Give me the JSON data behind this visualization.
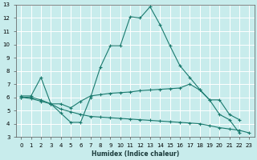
{
  "xlabel": "Humidex (Indice chaleur)",
  "xlim": [
    -0.5,
    23.5
  ],
  "ylim": [
    3,
    13
  ],
  "xticks": [
    0,
    1,
    2,
    3,
    4,
    5,
    6,
    7,
    8,
    9,
    10,
    11,
    12,
    13,
    14,
    15,
    16,
    17,
    18,
    19,
    20,
    21,
    22,
    23
  ],
  "yticks": [
    3,
    4,
    5,
    6,
    7,
    8,
    9,
    10,
    11,
    12,
    13
  ],
  "bg_color": "#c8ecec",
  "grid_color": "#ffffff",
  "line_color": "#1a7a6e",
  "lines": [
    {
      "x": [
        0,
        1,
        2,
        3,
        4,
        5,
        6,
        7,
        8,
        9,
        10,
        11,
        12,
        13,
        14,
        15,
        16,
        17,
        18,
        19,
        20,
        21,
        22
      ],
      "y": [
        6.1,
        6.1,
        7.5,
        5.5,
        4.8,
        4.1,
        4.1,
        6.0,
        8.3,
        9.9,
        9.9,
        12.1,
        12.0,
        12.85,
        11.5,
        9.9,
        8.4,
        7.5,
        6.6,
        5.8,
        4.7,
        4.3,
        3.3
      ]
    },
    {
      "x": [
        0,
        1,
        2,
        3,
        4,
        5,
        6,
        7,
        8,
        9,
        10,
        11,
        12,
        13,
        14,
        15,
        16,
        17,
        18,
        19,
        20,
        21,
        22
      ],
      "y": [
        6.0,
        6.0,
        5.8,
        5.5,
        5.5,
        5.2,
        5.7,
        6.1,
        6.2,
        6.3,
        6.35,
        6.4,
        6.5,
        6.55,
        6.6,
        6.65,
        6.7,
        7.0,
        6.55,
        5.8,
        5.8,
        4.7,
        4.3
      ]
    },
    {
      "x": [
        0,
        1,
        2,
        3,
        4,
        5,
        6,
        7,
        8,
        9,
        10,
        11,
        12,
        13,
        14,
        15,
        16,
        17,
        18,
        19,
        20,
        21,
        22,
        23
      ],
      "y": [
        6.0,
        5.9,
        5.7,
        5.5,
        5.1,
        4.9,
        4.7,
        4.55,
        4.5,
        4.45,
        4.4,
        4.35,
        4.3,
        4.25,
        4.2,
        4.15,
        4.1,
        4.05,
        4.0,
        3.85,
        3.7,
        3.6,
        3.5,
        3.3
      ]
    }
  ]
}
